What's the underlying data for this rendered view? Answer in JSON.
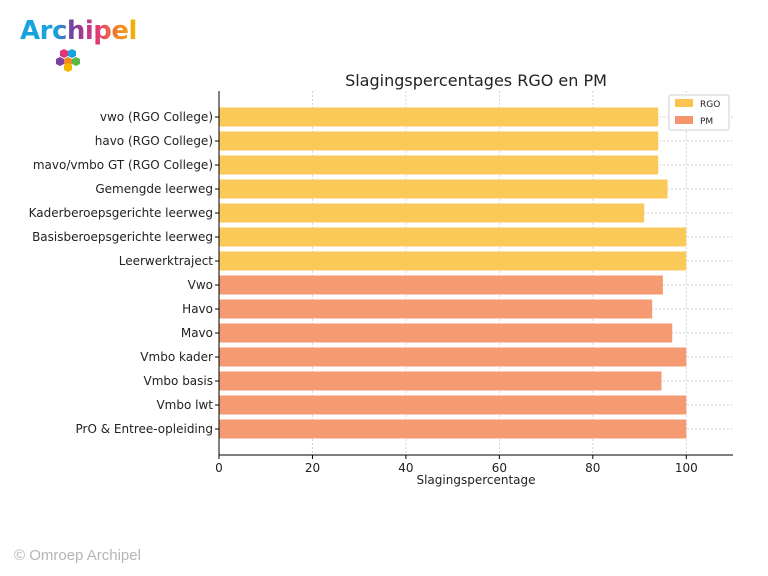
{
  "branding": {
    "logo_text": "Archipel",
    "copyright": "© Omroep Archipel"
  },
  "chart_data": {
    "type": "bar",
    "orientation": "horizontal",
    "title": "Slagingspercentages RGO en PM",
    "xlabel": "Slagingspercentage",
    "ylabel": "",
    "xlim": [
      0,
      110
    ],
    "xticks": [
      0,
      20,
      40,
      60,
      80,
      100
    ],
    "grid": true,
    "legend_position": "top-right",
    "categories": [
      "vwo (RGO College)",
      "havo (RGO College)",
      "mavo/vmbo GT (RGO College)",
      "Gemengde leerweg",
      "Kaderberoepsgerichte leerweg",
      "Basisberoepsgerichte leerweg",
      "Leerwerktraject",
      "Vwo",
      "Havo",
      "Mavo",
      "Vmbo kader",
      "Vmbo basis",
      "Vmbo lwt",
      "PrO & Entree-opleiding"
    ],
    "series": [
      {
        "name": "RGO",
        "color": "#fbc64f",
        "values": [
          94,
          94,
          94,
          96,
          91,
          100,
          100,
          null,
          null,
          null,
          null,
          null,
          null,
          null
        ]
      },
      {
        "name": "PM",
        "color": "#f4956a",
        "values": [
          null,
          null,
          null,
          null,
          null,
          null,
          null,
          95,
          92.7,
          97,
          100,
          94.7,
          100,
          100
        ]
      }
    ]
  }
}
